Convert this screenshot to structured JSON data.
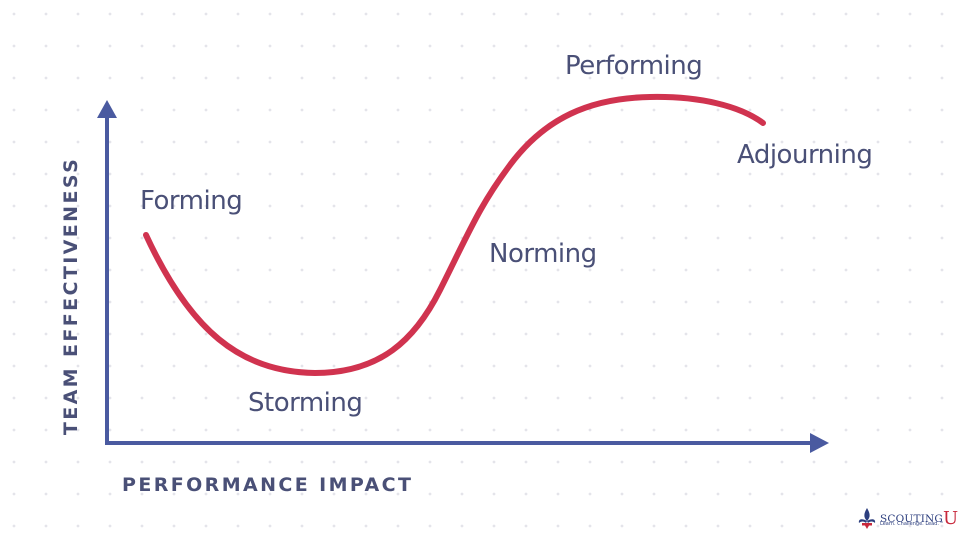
{
  "diagram": {
    "y_axis_label": "TEAM EFFECTIVENESS",
    "x_axis_label": "PERFORMANCE IMPACT",
    "stages": [
      "Forming",
      "Storming",
      "Norming",
      "Performing",
      "Adjourning"
    ]
  },
  "logo": {
    "brand": "SCOUTING",
    "brand_suffix": "U",
    "tagline": "Learn. Challenge. Lead.™"
  },
  "colors": {
    "curve": "#d0334f",
    "axis": "#4a5aa0",
    "label": "#4a5077",
    "dot": "#e4e4ea",
    "logo_red": "#c8283c",
    "logo_blue": "#2c3e7e"
  }
}
